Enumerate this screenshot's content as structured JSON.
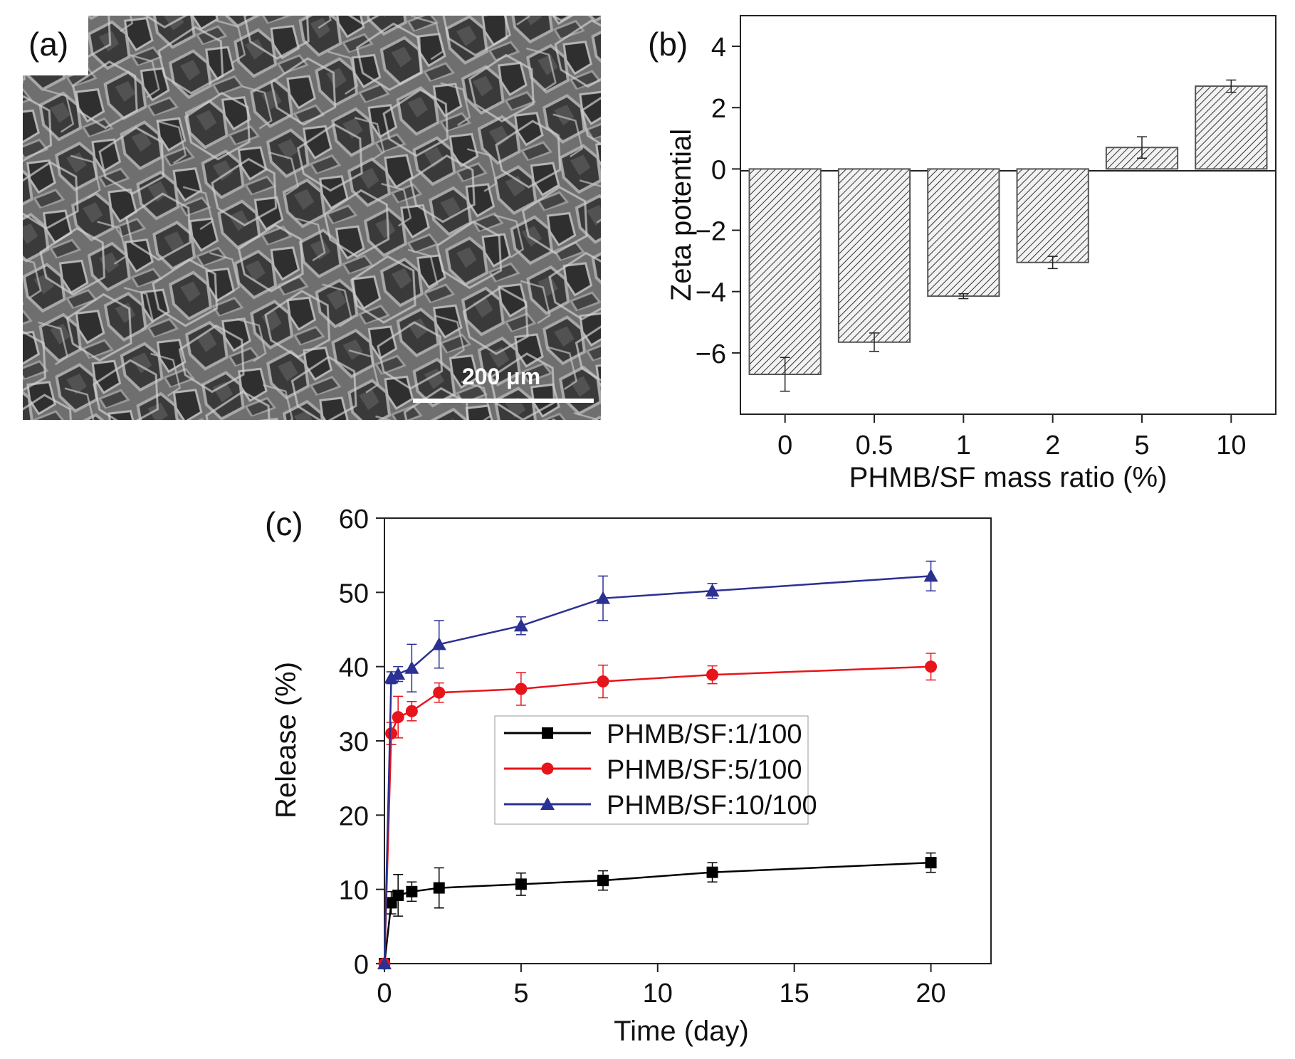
{
  "panel_labels": {
    "a": "(a)",
    "b": "(b)",
    "c": "(c)"
  },
  "micrograph": {
    "scale_bar_label": "200 μm"
  },
  "chart_data": [
    {
      "id": "b",
      "type": "bar",
      "categories": [
        "0",
        "0.5",
        "1",
        "2",
        "5",
        "10"
      ],
      "values": [
        -6.7,
        -5.65,
        -4.15,
        -3.05,
        0.7,
        2.7
      ],
      "errors": [
        0.55,
        0.3,
        0.08,
        0.2,
        0.35,
        0.2
      ],
      "xlabel": "PHMB/SF mass ratio (%)",
      "ylabel": "Zeta potential",
      "ylim": [
        -8,
        5
      ],
      "yticks": [
        -6,
        -4,
        -2,
        0,
        2,
        4
      ],
      "bar_fill": "hatched",
      "grid": false
    },
    {
      "id": "c",
      "type": "line",
      "xlabel": "Time (day)",
      "ylabel": "Release (%)",
      "xlim": [
        0,
        22.2
      ],
      "ylim": [
        0,
        60
      ],
      "xticks": [
        0,
        5,
        10,
        15,
        20
      ],
      "yticks": [
        0,
        10,
        20,
        30,
        40,
        50,
        60
      ],
      "grid": false,
      "legend_position": "center",
      "series": [
        {
          "name": "PHMB/SF:1/100",
          "color": "#000000",
          "marker": "square",
          "x": [
            0,
            0.25,
            0.5,
            1,
            2,
            5,
            8,
            12,
            20
          ],
          "y": [
            0,
            8.2,
            9.2,
            9.7,
            10.2,
            10.7,
            11.2,
            12.3,
            13.6
          ],
          "err": [
            0,
            1.5,
            2.8,
            1.3,
            2.7,
            1.5,
            1.3,
            1.3,
            1.3
          ]
        },
        {
          "name": "PHMB/SF:5/100",
          "color": "#e8141b",
          "marker": "circle",
          "x": [
            0,
            0.25,
            0.5,
            1,
            2,
            5,
            8,
            12,
            20
          ],
          "y": [
            0,
            31.0,
            33.2,
            34.0,
            36.5,
            37.0,
            38.0,
            38.9,
            40.0
          ],
          "err": [
            0,
            1.5,
            2.8,
            1.3,
            1.3,
            2.2,
            2.2,
            1.2,
            1.8
          ]
        },
        {
          "name": "PHMB/SF:10/100",
          "color": "#2b3192",
          "marker": "triangle",
          "x": [
            0,
            0.25,
            0.5,
            1,
            2,
            5,
            8,
            12,
            20
          ],
          "y": [
            0,
            38.5,
            39.0,
            39.8,
            43.0,
            45.5,
            49.2,
            50.2,
            52.2
          ],
          "err": [
            0,
            0.8,
            1.0,
            3.2,
            3.2,
            1.2,
            3.0,
            1.0,
            2.0
          ]
        }
      ]
    }
  ]
}
